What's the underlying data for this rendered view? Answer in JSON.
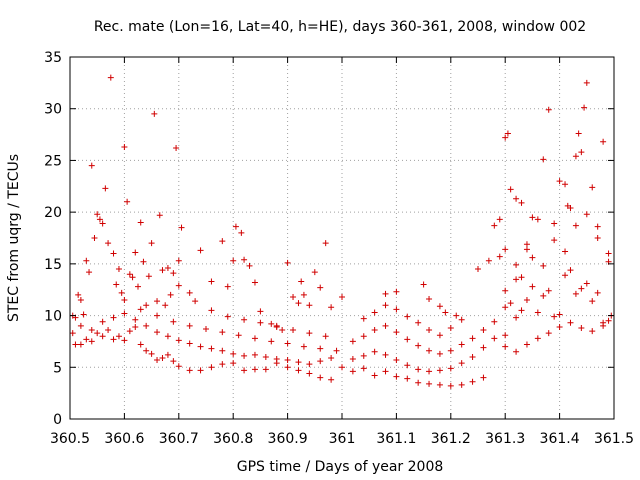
{
  "chart_data": {
    "type": "scatter",
    "title": "Rec. mate (Lon=16, Lat=40, h=HE), days 360-361, 2008, window 002",
    "xlabel": "GPS time / Days of year 2008",
    "ylabel": "STEC from uqrg / TECUs",
    "xlim": [
      360.5,
      361.5
    ],
    "ylim": [
      0,
      35
    ],
    "grid": true,
    "marker": "plus",
    "marker_color": "#d00000",
    "x_ticks": [
      "360.5",
      "360.6",
      "360.7",
      "360.8",
      "360.9",
      "361",
      "361.1",
      "361.2",
      "361.3",
      "361.4",
      "361.5"
    ],
    "y_ticks": [
      "0",
      "5",
      "10",
      "15",
      "20",
      "25",
      "30",
      "35"
    ],
    "x_tick_values": [
      360.5,
      360.6,
      360.7,
      360.8,
      360.9,
      361.0,
      361.1,
      361.2,
      361.3,
      361.4,
      361.5
    ],
    "y_tick_values": [
      0,
      5,
      10,
      15,
      20,
      25,
      30,
      35
    ],
    "points": [
      [
        360.505,
        10.0
      ],
      [
        360.51,
        9.8
      ],
      [
        360.515,
        12.0
      ],
      [
        360.52,
        11.5
      ],
      [
        360.525,
        10.1
      ],
      [
        360.53,
        15.3
      ],
      [
        360.535,
        14.2
      ],
      [
        360.54,
        24.5
      ],
      [
        360.545,
        17.5
      ],
      [
        360.55,
        19.8
      ],
      [
        360.555,
        19.3
      ],
      [
        360.56,
        18.9
      ],
      [
        360.565,
        22.3
      ],
      [
        360.57,
        17.0
      ],
      [
        360.575,
        33.0
      ],
      [
        360.58,
        16.0
      ],
      [
        360.585,
        13.0
      ],
      [
        360.59,
        14.5
      ],
      [
        360.595,
        12.2
      ],
      [
        360.6,
        26.3
      ],
      [
        360.605,
        21.0
      ],
      [
        360.61,
        14.0
      ],
      [
        360.615,
        13.7
      ],
      [
        360.62,
        16.1
      ],
      [
        360.625,
        12.8
      ],
      [
        360.63,
        19.0
      ],
      [
        360.635,
        15.2
      ],
      [
        360.64,
        11.0
      ],
      [
        360.645,
        13.8
      ],
      [
        360.65,
        17.0
      ],
      [
        360.655,
        29.5
      ],
      [
        360.66,
        11.4
      ],
      [
        360.665,
        19.7
      ],
      [
        360.67,
        14.4
      ],
      [
        360.675,
        11.0
      ],
      [
        360.68,
        14.6
      ],
      [
        360.685,
        12.0
      ],
      [
        360.69,
        14.1
      ],
      [
        360.695,
        26.2
      ],
      [
        360.7,
        15.3
      ],
      [
        360.705,
        18.5
      ],
      [
        360.72,
        12.2
      ],
      [
        360.74,
        16.3
      ],
      [
        360.76,
        13.3
      ],
      [
        360.78,
        17.2
      ],
      [
        360.79,
        12.8
      ],
      [
        360.8,
        15.3
      ],
      [
        360.805,
        18.6
      ],
      [
        360.815,
        18.0
      ],
      [
        360.82,
        15.4
      ],
      [
        360.83,
        14.8
      ],
      [
        360.84,
        13.2
      ],
      [
        360.85,
        10.4
      ],
      [
        360.87,
        9.2
      ],
      [
        360.88,
        8.9
      ],
      [
        360.89,
        8.6
      ],
      [
        360.9,
        15.1
      ],
      [
        360.91,
        11.8
      ],
      [
        360.92,
        11.2
      ],
      [
        360.925,
        13.3
      ],
      [
        360.93,
        12.0
      ],
      [
        360.94,
        11.0
      ],
      [
        360.95,
        14.2
      ],
      [
        360.96,
        12.7
      ],
      [
        360.97,
        17.0
      ],
      [
        360.98,
        10.8
      ],
      [
        361.0,
        11.8
      ],
      [
        360.505,
        8.3
      ],
      [
        360.51,
        7.2
      ],
      [
        360.52,
        7.2
      ],
      [
        360.53,
        7.7
      ],
      [
        360.54,
        7.5
      ],
      [
        360.55,
        8.3
      ],
      [
        360.56,
        8.0
      ],
      [
        360.57,
        8.6
      ],
      [
        360.58,
        7.7
      ],
      [
        360.59,
        8.0
      ],
      [
        360.6,
        7.6
      ],
      [
        360.61,
        8.5
      ],
      [
        360.62,
        8.9
      ],
      [
        360.63,
        7.2
      ],
      [
        360.64,
        6.6
      ],
      [
        360.65,
        6.3
      ],
      [
        360.66,
        5.7
      ],
      [
        360.67,
        5.9
      ],
      [
        360.68,
        6.2
      ],
      [
        360.69,
        5.6
      ],
      [
        360.7,
        5.1
      ],
      [
        360.72,
        4.7
      ],
      [
        360.74,
        4.7
      ],
      [
        360.76,
        5.0
      ],
      [
        360.78,
        5.3
      ],
      [
        360.8,
        5.4
      ],
      [
        360.82,
        4.7
      ],
      [
        360.84,
        4.8
      ],
      [
        360.86,
        4.8
      ],
      [
        360.88,
        5.4
      ],
      [
        360.9,
        5.0
      ],
      [
        360.92,
        4.7
      ],
      [
        360.94,
        4.4
      ],
      [
        360.96,
        4.0
      ],
      [
        360.98,
        3.8
      ],
      [
        361.0,
        5.0
      ],
      [
        360.52,
        9.0
      ],
      [
        360.54,
        8.6
      ],
      [
        360.56,
        9.4
      ],
      [
        360.58,
        9.8
      ],
      [
        360.6,
        10.2
      ],
      [
        360.62,
        9.6
      ],
      [
        360.64,
        9.0
      ],
      [
        360.66,
        8.4
      ],
      [
        360.68,
        8.0
      ],
      [
        360.7,
        7.6
      ],
      [
        360.72,
        7.3
      ],
      [
        360.74,
        7.0
      ],
      [
        360.76,
        6.8
      ],
      [
        360.78,
        6.6
      ],
      [
        360.8,
        6.3
      ],
      [
        360.82,
        6.1
      ],
      [
        360.84,
        6.2
      ],
      [
        360.86,
        6.0
      ],
      [
        360.88,
        5.8
      ],
      [
        360.9,
        5.7
      ],
      [
        360.92,
        5.5
      ],
      [
        360.94,
        5.3
      ],
      [
        360.96,
        5.6
      ],
      [
        360.98,
        5.9
      ],
      [
        360.6,
        11.5
      ],
      [
        360.63,
        10.6
      ],
      [
        360.66,
        10.0
      ],
      [
        360.69,
        9.4
      ],
      [
        360.72,
        9.0
      ],
      [
        360.75,
        8.7
      ],
      [
        360.78,
        8.4
      ],
      [
        360.81,
        8.1
      ],
      [
        360.84,
        7.8
      ],
      [
        360.87,
        7.5
      ],
      [
        360.9,
        7.3
      ],
      [
        360.93,
        7.0
      ],
      [
        360.96,
        6.8
      ],
      [
        360.99,
        6.6
      ],
      [
        360.7,
        12.9
      ],
      [
        360.73,
        11.4
      ],
      [
        360.76,
        10.5
      ],
      [
        360.79,
        9.9
      ],
      [
        360.82,
        9.6
      ],
      [
        360.85,
        9.3
      ],
      [
        360.88,
        9.0
      ],
      [
        360.91,
        8.6
      ],
      [
        360.94,
        8.3
      ],
      [
        360.97,
        8.0
      ],
      [
        361.02,
        4.6
      ],
      [
        361.04,
        4.9
      ],
      [
        361.06,
        4.2
      ],
      [
        361.08,
        4.6
      ],
      [
        361.1,
        4.1
      ],
      [
        361.12,
        3.9
      ],
      [
        361.14,
        3.5
      ],
      [
        361.16,
        3.4
      ],
      [
        361.18,
        3.3
      ],
      [
        361.2,
        3.2
      ],
      [
        361.22,
        3.3
      ],
      [
        361.24,
        3.6
      ],
      [
        361.26,
        4.0
      ],
      [
        361.02,
        5.8
      ],
      [
        361.04,
        6.1
      ],
      [
        361.06,
        6.5
      ],
      [
        361.08,
        6.2
      ],
      [
        361.1,
        5.7
      ],
      [
        361.12,
        5.2
      ],
      [
        361.14,
        4.8
      ],
      [
        361.16,
        4.6
      ],
      [
        361.18,
        4.7
      ],
      [
        361.2,
        4.9
      ],
      [
        361.22,
        5.4
      ],
      [
        361.24,
        6.0
      ],
      [
        361.26,
        6.9
      ],
      [
        361.28,
        7.8
      ],
      [
        361.3,
        8.1
      ],
      [
        361.02,
        7.5
      ],
      [
        361.04,
        8.0
      ],
      [
        361.06,
        8.6
      ],
      [
        361.08,
        9.0
      ],
      [
        361.1,
        8.4
      ],
      [
        361.12,
        7.7
      ],
      [
        361.14,
        7.1
      ],
      [
        361.16,
        6.6
      ],
      [
        361.18,
        6.3
      ],
      [
        361.2,
        6.6
      ],
      [
        361.22,
        7.2
      ],
      [
        361.24,
        7.8
      ],
      [
        361.26,
        8.6
      ],
      [
        361.28,
        9.4
      ],
      [
        361.04,
        9.7
      ],
      [
        361.06,
        10.3
      ],
      [
        361.08,
        11.0
      ],
      [
        361.1,
        10.6
      ],
      [
        361.12,
        9.9
      ],
      [
        361.14,
        9.3
      ],
      [
        361.16,
        8.6
      ],
      [
        361.18,
        8.1
      ],
      [
        361.2,
        8.8
      ],
      [
        361.22,
        9.6
      ],
      [
        361.08,
        12.1
      ],
      [
        361.1,
        12.3
      ],
      [
        361.15,
        13.0
      ],
      [
        361.16,
        11.6
      ],
      [
        361.18,
        10.9
      ],
      [
        361.19,
        10.3
      ],
      [
        361.21,
        10.0
      ],
      [
        361.25,
        14.5
      ],
      [
        361.27,
        15.3
      ],
      [
        361.29,
        15.7
      ],
      [
        361.3,
        16.4
      ],
      [
        361.32,
        14.9
      ],
      [
        361.33,
        13.7
      ],
      [
        361.34,
        16.4
      ],
      [
        361.28,
        18.7
      ],
      [
        361.29,
        19.3
      ],
      [
        361.3,
        27.2
      ],
      [
        361.305,
        27.6
      ],
      [
        361.31,
        22.2
      ],
      [
        361.32,
        21.3
      ],
      [
        361.33,
        20.9
      ],
      [
        361.34,
        16.9
      ],
      [
        361.35,
        19.5
      ],
      [
        361.36,
        19.3
      ],
      [
        361.37,
        25.1
      ],
      [
        361.38,
        29.9
      ],
      [
        361.39,
        18.9
      ],
      [
        361.4,
        23.0
      ],
      [
        361.41,
        22.7
      ],
      [
        361.415,
        20.6
      ],
      [
        361.42,
        20.4
      ],
      [
        361.43,
        25.4
      ],
      [
        361.435,
        27.6
      ],
      [
        361.44,
        25.8
      ],
      [
        361.445,
        30.1
      ],
      [
        361.45,
        32.5
      ],
      [
        361.46,
        22.4
      ],
      [
        361.47,
        18.6
      ],
      [
        361.48,
        26.8
      ],
      [
        361.49,
        15.2
      ],
      [
        361.3,
        10.8
      ],
      [
        361.31,
        11.2
      ],
      [
        361.32,
        9.8
      ],
      [
        361.33,
        10.5
      ],
      [
        361.34,
        11.5
      ],
      [
        361.35,
        12.8
      ],
      [
        361.36,
        10.3
      ],
      [
        361.37,
        11.9
      ],
      [
        361.38,
        12.4
      ],
      [
        361.39,
        9.9
      ],
      [
        361.4,
        10.1
      ],
      [
        361.41,
        13.9
      ],
      [
        361.42,
        14.4
      ],
      [
        361.43,
        12.1
      ],
      [
        361.44,
        12.6
      ],
      [
        361.45,
        13.1
      ],
      [
        361.46,
        11.4
      ],
      [
        361.47,
        12.2
      ],
      [
        361.48,
        9.3
      ],
      [
        361.49,
        9.5
      ],
      [
        361.495,
        10.0
      ],
      [
        361.3,
        7.0
      ],
      [
        361.32,
        6.5
      ],
      [
        361.34,
        7.2
      ],
      [
        361.36,
        7.8
      ],
      [
        361.38,
        8.3
      ],
      [
        361.4,
        8.9
      ],
      [
        361.42,
        9.3
      ],
      [
        361.44,
        8.8
      ],
      [
        361.46,
        8.5
      ],
      [
        361.48,
        9.0
      ],
      [
        361.3,
        12.4
      ],
      [
        361.32,
        13.5
      ],
      [
        361.35,
        15.6
      ],
      [
        361.37,
        14.8
      ],
      [
        361.39,
        17.3
      ],
      [
        361.41,
        16.2
      ],
      [
        361.43,
        18.7
      ],
      [
        361.45,
        19.8
      ],
      [
        361.47,
        17.5
      ],
      [
        361.49,
        16.0
      ]
    ]
  }
}
